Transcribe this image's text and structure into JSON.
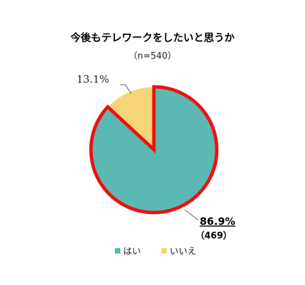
{
  "chart_data": {
    "type": "pie",
    "title": "今後もテレワークをしたいと思うか",
    "subtitle": "（n=540）",
    "categories": [
      "はい",
      "いいえ"
    ],
    "values": [
      86.9,
      13.1
    ],
    "value_labels": [
      "86.9%",
      "13.1%"
    ],
    "counts": [
      "（469）",
      ""
    ],
    "colors": [
      "#5cb8b2",
      "#f5d578"
    ],
    "highlight_color": "#ee1111",
    "highlighted_slice": "はい",
    "legend_position": "bottom"
  }
}
